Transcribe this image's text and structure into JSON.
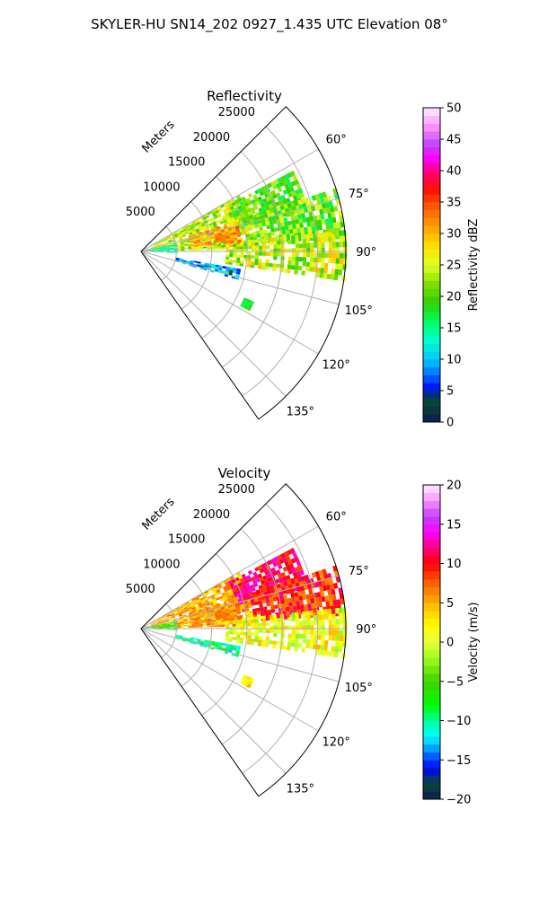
{
  "figure": {
    "suptitle": "SKYLER-HU  SN14_202  0927_1.435 UTC Elevation 08°"
  },
  "colors": {
    "grid": "#b0b0b0",
    "frame": "#000000"
  },
  "chart_data": [
    {
      "type": "heatmap",
      "projection": "polar-sector",
      "title": "Reflectivity",
      "range_label": "Meters",
      "range_ticks": [
        5000,
        10000,
        15000,
        20000,
        25000
      ],
      "range_tick_labels": [
        "5000",
        "10000",
        "15000",
        "20000",
        "25000"
      ],
      "r_max": 29000,
      "theta_range_deg": [
        45,
        145
      ],
      "theta_ticks_deg": [
        60,
        75,
        90,
        105,
        120,
        135
      ],
      "theta_tick_labels": [
        "60°",
        "75°",
        "90°",
        "105°",
        "120°",
        "135°"
      ],
      "colorbar": {
        "label": "Reflectivity dBZ",
        "range": [
          0,
          50
        ],
        "ticks": [
          0,
          5,
          10,
          15,
          20,
          25,
          30,
          35,
          40,
          45,
          50
        ],
        "tick_labels": [
          "0",
          "5",
          "10",
          "15",
          "20",
          "25",
          "30",
          "35",
          "40",
          "45",
          "50"
        ],
        "stops": [
          {
            "v": 0,
            "c": "#0c1a5a"
          },
          {
            "v": 2,
            "c": "#0a3a38"
          },
          {
            "v": 4,
            "c": "#0a4a30"
          },
          {
            "v": 5,
            "c": "#0000ff"
          },
          {
            "v": 8,
            "c": "#0080ff"
          },
          {
            "v": 10,
            "c": "#00c8ff"
          },
          {
            "v": 13,
            "c": "#00ffd0"
          },
          {
            "v": 16,
            "c": "#00ff60"
          },
          {
            "v": 19,
            "c": "#30d000"
          },
          {
            "v": 22,
            "c": "#80e000"
          },
          {
            "v": 25,
            "c": "#e0ff20"
          },
          {
            "v": 28,
            "c": "#ffe000"
          },
          {
            "v": 31,
            "c": "#ffa000"
          },
          {
            "v": 34,
            "c": "#ff6000"
          },
          {
            "v": 37,
            "c": "#ff1000"
          },
          {
            "v": 40,
            "c": "#ff0080"
          },
          {
            "v": 42,
            "c": "#ff00ff"
          },
          {
            "v": 44,
            "c": "#c040ff"
          },
          {
            "v": 47,
            "c": "#ff90ff"
          },
          {
            "v": 50,
            "c": "#fff0ff"
          }
        ]
      },
      "echo_regions": [
        {
          "theta": [
            60,
            88
          ],
          "r": [
            1500,
            16000
          ],
          "value": 24,
          "jitter": 5
        },
        {
          "theta": [
            62,
            76
          ],
          "r": [
            14000,
            24000
          ],
          "value": 20,
          "jitter": 4
        },
        {
          "theta": [
            72,
            86
          ],
          "r": [
            16000,
            29000
          ],
          "value": 21,
          "jitter": 5
        },
        {
          "theta": [
            84,
            98
          ],
          "r": [
            12000,
            29000
          ],
          "value": 24,
          "jitter": 6
        },
        {
          "theta": [
            72,
            84
          ],
          "r": [
            7000,
            14000
          ],
          "value": 31,
          "jitter": 4
        },
        {
          "theta": [
            78,
            92
          ],
          "r": [
            0,
            5000
          ],
          "value": 14,
          "jitter": 4
        },
        {
          "theta": [
            100,
            106
          ],
          "r": [
            5000,
            14000
          ],
          "value": 9,
          "jitter": 5
        },
        {
          "theta": [
            114,
            118
          ],
          "r": [
            16000,
            17500
          ],
          "value": 18,
          "jitter": 2
        }
      ]
    },
    {
      "type": "heatmap",
      "projection": "polar-sector",
      "title": "Velocity",
      "range_label": "Meters",
      "range_ticks": [
        5000,
        10000,
        15000,
        20000,
        25000
      ],
      "range_tick_labels": [
        "5000",
        "10000",
        "15000",
        "20000",
        "25000"
      ],
      "r_max": 29000,
      "theta_range_deg": [
        45,
        145
      ],
      "theta_ticks_deg": [
        60,
        75,
        90,
        105,
        120,
        135
      ],
      "theta_tick_labels": [
        "60°",
        "75°",
        "90°",
        "105°",
        "120°",
        "135°"
      ],
      "colorbar": {
        "label": "Velocity (m/s)",
        "range": [
          -20,
          20
        ],
        "ticks": [
          -20,
          -15,
          -10,
          -5,
          0,
          5,
          10,
          15,
          20
        ],
        "tick_labels": [
          "−20",
          "−15",
          "−10",
          "−5",
          "0",
          "5",
          "10",
          "15",
          "20"
        ],
        "stops": [
          {
            "v": -20,
            "c": "#0c1a5a"
          },
          {
            "v": -18,
            "c": "#0a4a30"
          },
          {
            "v": -16,
            "c": "#0000ff"
          },
          {
            "v": -14,
            "c": "#0080ff"
          },
          {
            "v": -12,
            "c": "#00ffff"
          },
          {
            "v": -10,
            "c": "#00ffa0"
          },
          {
            "v": -8,
            "c": "#00ff00"
          },
          {
            "v": -5,
            "c": "#40d000"
          },
          {
            "v": -2,
            "c": "#a0ff20"
          },
          {
            "v": 0,
            "c": "#e8ff40"
          },
          {
            "v": 2,
            "c": "#ffff00"
          },
          {
            "v": 4,
            "c": "#ffd000"
          },
          {
            "v": 6,
            "c": "#ff9000"
          },
          {
            "v": 8,
            "c": "#ff5000"
          },
          {
            "v": 10,
            "c": "#ff0000"
          },
          {
            "v": 12,
            "c": "#ff0080"
          },
          {
            "v": 14,
            "c": "#ff00ff"
          },
          {
            "v": 16,
            "c": "#c040ff"
          },
          {
            "v": 18,
            "c": "#ff90ff"
          },
          {
            "v": 20,
            "c": "#fff0ff"
          }
        ]
      },
      "echo_regions": [
        {
          "theta": [
            60,
            88
          ],
          "r": [
            1500,
            16000
          ],
          "value": 5,
          "jitter": 3
        },
        {
          "theta": [
            62,
            76
          ],
          "r": [
            14000,
            24000
          ],
          "value": 11,
          "jitter": 3
        },
        {
          "theta": [
            72,
            86
          ],
          "r": [
            16000,
            29000
          ],
          "value": 9,
          "jitter": 3
        },
        {
          "theta": [
            84,
            98
          ],
          "r": [
            12000,
            29000
          ],
          "value": 1,
          "jitter": 4
        },
        {
          "theta": [
            72,
            84
          ],
          "r": [
            7000,
            14000
          ],
          "value": 6,
          "jitter": 2
        },
        {
          "theta": [
            78,
            92
          ],
          "r": [
            0,
            5000
          ],
          "value": -6,
          "jitter": 3
        },
        {
          "theta": [
            100,
            106
          ],
          "r": [
            5000,
            14000
          ],
          "value": -10,
          "jitter": 3
        },
        {
          "theta": [
            114,
            118
          ],
          "r": [
            16000,
            17500
          ],
          "value": 3,
          "jitter": 2
        }
      ]
    }
  ]
}
